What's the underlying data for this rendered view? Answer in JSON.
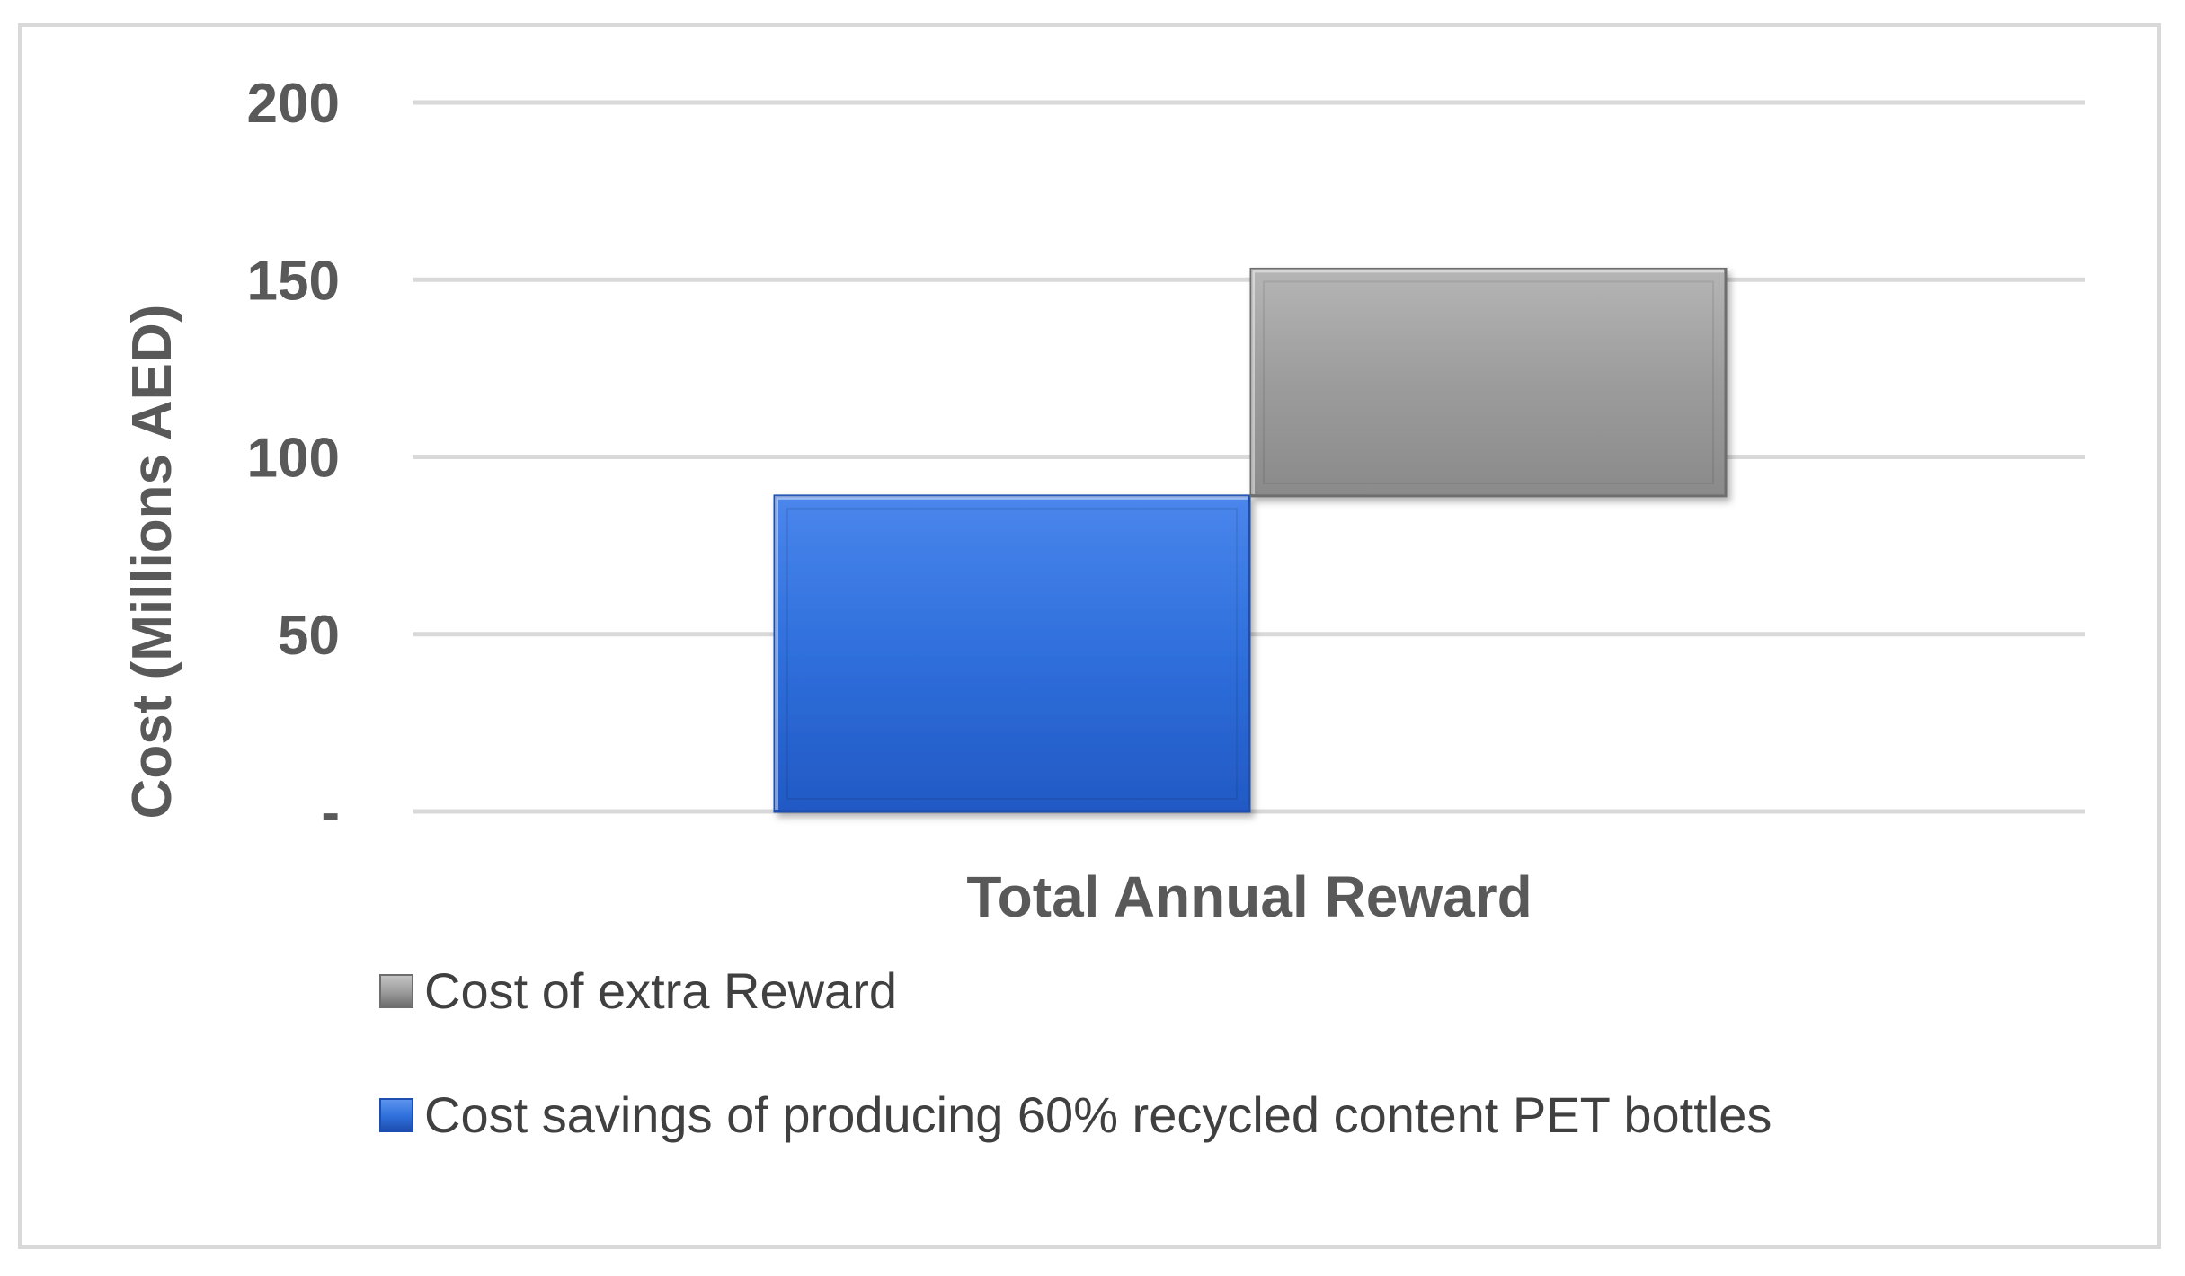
{
  "chart_data": {
    "type": "bar",
    "stacked": true,
    "categories": [
      "Total Annual Reward"
    ],
    "series": [
      {
        "name": "Cost savings of producing 60% recycled content PET bottles",
        "values": [
          89
        ],
        "color": "#2e6fdb"
      },
      {
        "name": "Cost of extra Reward",
        "values": [
          64
        ],
        "color": "#9a9a9a"
      }
    ],
    "ylabel": "Cost (Millions AED)",
    "ylim": [
      0,
      200
    ],
    "yticks": [
      {
        "value": 0,
        "label": "-"
      },
      {
        "value": 50,
        "label": "50"
      },
      {
        "value": 100,
        "label": "100"
      },
      {
        "value": 150,
        "label": "150"
      },
      {
        "value": 200,
        "label": "200"
      }
    ],
    "grid": true,
    "legend_position": "bottom",
    "legend_order": [
      "Cost of extra Reward",
      "Cost savings of producing 60% recycled content PET bottles"
    ]
  }
}
